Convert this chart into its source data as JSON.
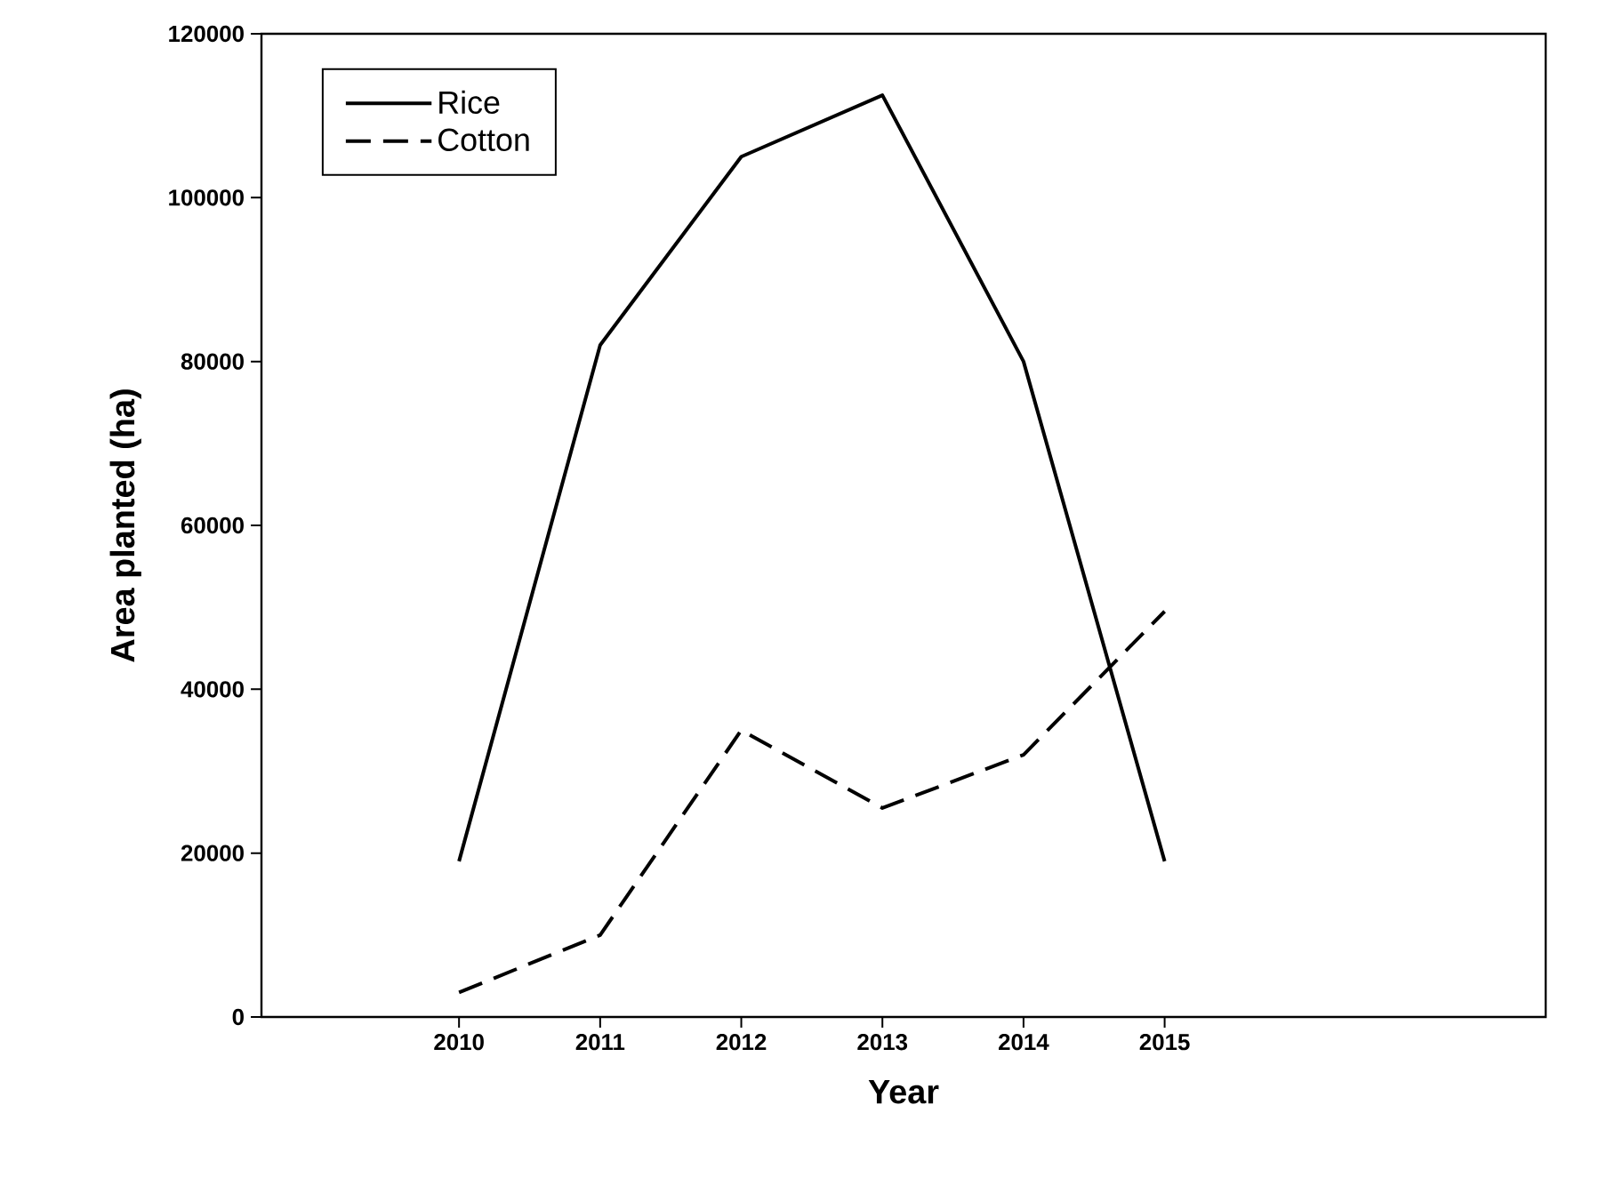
{
  "chart_data": {
    "type": "line",
    "xlabel": "Year",
    "ylabel": "Area planted (ha)",
    "x": [
      2010,
      2011,
      2012,
      2013,
      2014,
      2015
    ],
    "series": [
      {
        "name": "Rice",
        "color": "#000000",
        "line_style": "solid",
        "values": [
          19000,
          82000,
          105000,
          112500,
          80000,
          19000
        ]
      },
      {
        "name": "Cotton",
        "color": "#000000",
        "line_style": "dashed",
        "values": [
          3000,
          10000,
          35000,
          25500,
          32000,
          49500
        ]
      }
    ],
    "xlim": [
      2008.6,
      2017.7
    ],
    "ylim": [
      0,
      120000
    ],
    "xticks": [
      2010,
      2011,
      2012,
      2013,
      2014,
      2015
    ],
    "yticks": [
      0,
      20000,
      40000,
      60000,
      80000,
      100000,
      120000
    ],
    "legend": "top left",
    "grid": false
  }
}
